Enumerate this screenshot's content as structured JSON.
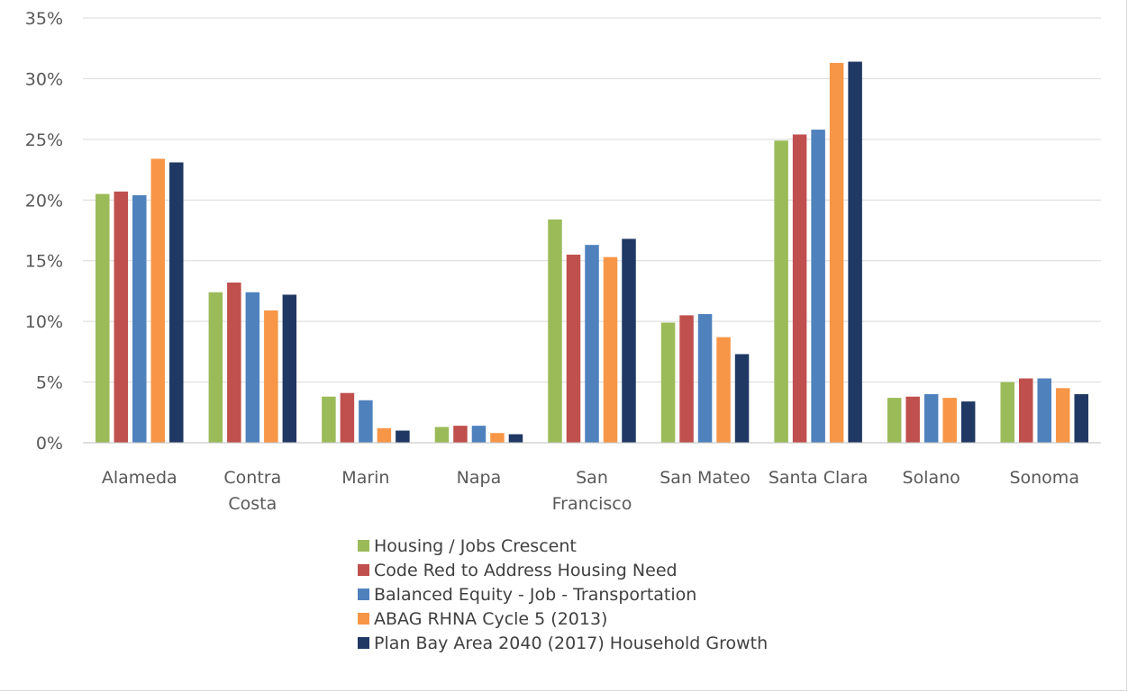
{
  "chart_data": {
    "type": "bar",
    "categories": [
      [
        "Alameda"
      ],
      [
        "Contra",
        "Costa"
      ],
      [
        "Marin"
      ],
      [
        "Napa"
      ],
      [
        "San",
        "Francisco"
      ],
      [
        "San Mateo"
      ],
      [
        "Santa Clara"
      ],
      [
        "Solano"
      ],
      [
        "Sonoma"
      ]
    ],
    "y_ticks": [
      "0%",
      "5%",
      "10%",
      "15%",
      "20%",
      "25%",
      "30%",
      "35%"
    ],
    "ylim": [
      0,
      35
    ],
    "grid": true,
    "legend_position": "bottom",
    "series": [
      {
        "name": "Housing / Jobs Crescent",
        "color": "#9bbb59",
        "values": [
          20.5,
          12.4,
          3.8,
          1.3,
          18.4,
          9.9,
          24.9,
          3.7,
          5.0
        ]
      },
      {
        "name": "Code Red to Address Housing Need",
        "color": "#c0504d",
        "values": [
          20.7,
          13.2,
          4.1,
          1.4,
          15.5,
          10.5,
          25.4,
          3.8,
          5.3
        ]
      },
      {
        "name": "Balanced Equity - Job - Transportation",
        "color": "#4f81bd",
        "values": [
          20.4,
          12.4,
          3.5,
          1.4,
          16.3,
          10.6,
          25.8,
          4.0,
          5.3
        ]
      },
      {
        "name": "ABAG RHNA Cycle 5 (2013)",
        "color": "#f79646",
        "values": [
          23.4,
          10.9,
          1.2,
          0.8,
          15.3,
          8.7,
          31.3,
          3.7,
          4.5
        ]
      },
      {
        "name": "Plan Bay Area 2040 (2017) Household Growth",
        "color": "#1f3864",
        "values": [
          23.1,
          12.2,
          1.0,
          0.7,
          16.8,
          7.3,
          31.4,
          3.4,
          4.0
        ]
      }
    ]
  }
}
